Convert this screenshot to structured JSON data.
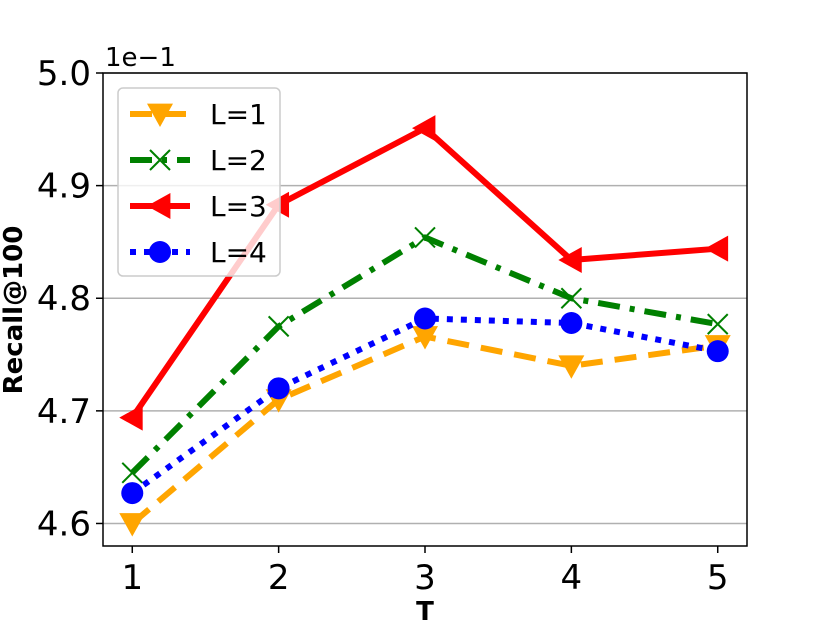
{
  "chart_data": {
    "type": "line",
    "xlabel": "T",
    "ylabel": "Recall@100",
    "y_offset_label": "1e−1",
    "categories": [
      "1",
      "2",
      "3",
      "4",
      "5"
    ],
    "x": [
      1,
      2,
      3,
      4,
      5
    ],
    "y_tick_labels": [
      "4.6",
      "4.7",
      "4.8",
      "4.9",
      "5.0"
    ],
    "ylim": [
      4.58,
      5.0
    ],
    "grid": "horizontal",
    "legend_position": "upper-left",
    "series": [
      {
        "name": "L=1",
        "values": [
          4.6,
          4.71,
          4.766,
          4.74,
          4.758
        ],
        "color": "#ffa500",
        "linestyle": "dashed",
        "marker": "triangle-down"
      },
      {
        "name": "L=2",
        "values": [
          4.645,
          4.775,
          4.854,
          4.8,
          4.777
        ],
        "color": "#008000",
        "linestyle": "dash-dot",
        "marker": "x"
      },
      {
        "name": "L=3",
        "values": [
          4.694,
          4.883,
          4.951,
          4.834,
          4.844
        ],
        "color": "#ff0000",
        "linestyle": "solid",
        "marker": "triangle-left"
      },
      {
        "name": "L=4",
        "values": [
          4.627,
          4.72,
          4.782,
          4.778,
          4.753
        ],
        "color": "#0000ff",
        "linestyle": "dotted",
        "marker": "circle"
      }
    ]
  }
}
